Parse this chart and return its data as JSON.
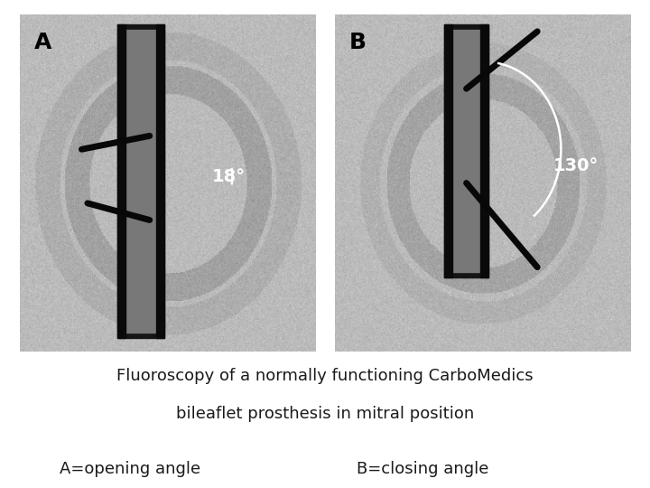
{
  "title_line1": "Fluoroscopy of a normally functioning CarboMedics",
  "title_line2": "bileaflet prosthesis in mitral position",
  "caption_left": "A=opening angle",
  "caption_right": "B=closing angle",
  "label_A": "A",
  "label_B": "B",
  "angle_A": "18°",
  "angle_B": "130°",
  "bg_color": "#ffffff",
  "text_color": "#1a1a1a",
  "font_size_title": 13,
  "font_size_caption": 13,
  "font_size_label": 18,
  "font_size_angle": 14
}
